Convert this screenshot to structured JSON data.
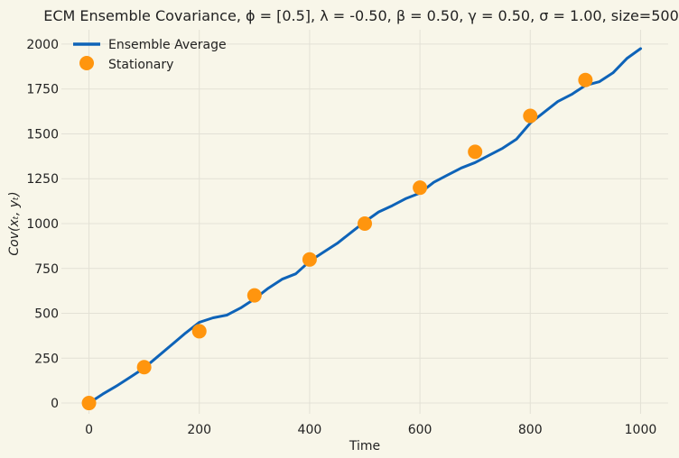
{
  "chart_data": {
    "type": "line",
    "title": "ECM Ensemble Covariance, ϕ = [0.5], λ = -0.50, β = 0.50, γ = 0.50, σ = 1.00, size=500",
    "xlabel": "Time",
    "ylabel": "Cov(xₜ, yₜ)",
    "xlim": [
      -50,
      1050
    ],
    "ylim": [
      -60,
      2080
    ],
    "x_ticks": [
      0,
      200,
      400,
      600,
      800,
      1000
    ],
    "y_ticks": [
      0,
      250,
      500,
      750,
      1000,
      1250,
      1500,
      1750,
      2000
    ],
    "grid": true,
    "legend": {
      "placement": "top-left"
    },
    "series": [
      {
        "name": "Ensemble Average",
        "kind": "line",
        "color": "#0e63b8",
        "x": [
          0,
          25,
          50,
          75,
          100,
          125,
          150,
          175,
          200,
          225,
          250,
          275,
          300,
          325,
          350,
          375,
          400,
          425,
          450,
          475,
          500,
          525,
          550,
          575,
          600,
          625,
          650,
          675,
          700,
          725,
          750,
          775,
          800,
          825,
          850,
          875,
          900,
          925,
          950,
          975,
          1000
        ],
        "y": [
          0,
          50,
          95,
          145,
          195,
          260,
          325,
          390,
          450,
          475,
          490,
          530,
          580,
          640,
          690,
          720,
          790,
          840,
          890,
          950,
          1010,
          1065,
          1100,
          1140,
          1170,
          1230,
          1270,
          1310,
          1340,
          1380,
          1420,
          1470,
          1560,
          1620,
          1680,
          1720,
          1770,
          1790,
          1840,
          1920,
          1975
        ]
      },
      {
        "name": "Stationary",
        "kind": "scatter",
        "color": "#ff950e",
        "x": [
          0,
          100,
          200,
          300,
          400,
          500,
          600,
          700,
          800,
          900
        ],
        "y": [
          0,
          200,
          400,
          600,
          800,
          1000,
          1200,
          1400,
          1600,
          1800
        ]
      }
    ]
  }
}
